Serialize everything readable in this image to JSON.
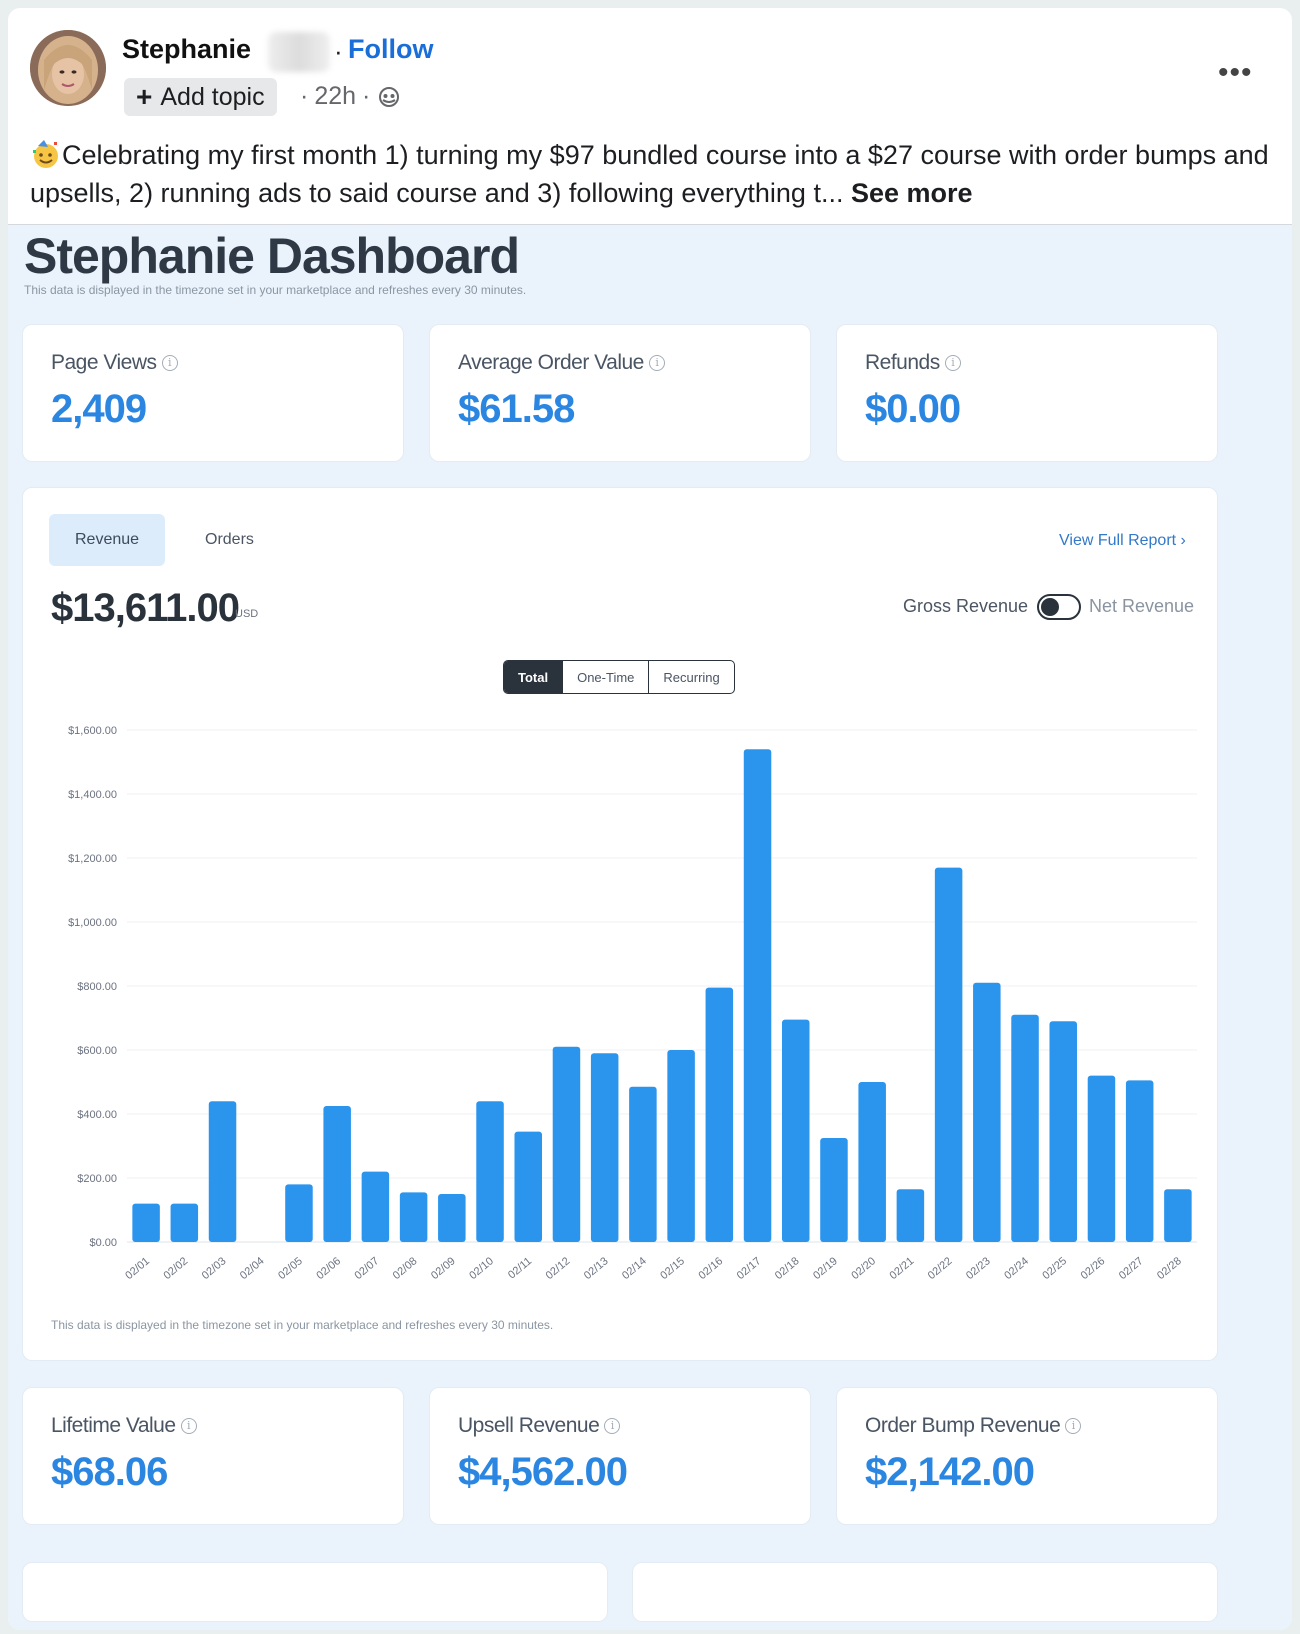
{
  "post": {
    "author": "Stephanie",
    "follow_label": "Follow",
    "add_topic_label": "Add topic",
    "time": "22h",
    "text": "Celebrating my first month 1) turning my $97 bundled course into a $27 course with order bumps and upsells, 2) running ads to said course and 3) following everything t...",
    "see_more": "See more",
    "more_icon": "more-options-icon",
    "globe_icon": "globe-icon"
  },
  "dashboard": {
    "title": "Stephanie Dashboard",
    "subtitle": "This data is displayed in the timezone set in your marketplace and refreshes every 30 minutes.",
    "top_stats": [
      {
        "label": "Page Views",
        "value": "2,409"
      },
      {
        "label": "Average Order Value",
        "value": "$61.58"
      },
      {
        "label": "Refunds",
        "value": "$0.00"
      }
    ],
    "bottom_stats": [
      {
        "label": "Lifetime Value",
        "value": "$68.06"
      },
      {
        "label": "Upsell Revenue",
        "value": "$4,562.00"
      },
      {
        "label": "Order Bump Revenue",
        "value": "$2,142.00"
      }
    ],
    "tabs": [
      "Revenue",
      "Orders"
    ],
    "full_report": "View Full Report ›",
    "total": "$13,611.00",
    "currency": "USD",
    "gross_label": "Gross Revenue",
    "net_label": "Net Revenue",
    "segments": [
      "Total",
      "One-Time",
      "Recurring"
    ],
    "chart_note": "This data is displayed in the timezone set in your marketplace and refreshes every 30 minutes."
  },
  "chart_data": {
    "type": "bar",
    "title": "",
    "xlabel": "",
    "ylabel": "",
    "ylim": [
      0,
      1600
    ],
    "y_ticks": [
      "$0.00",
      "$200.00",
      "$400.00",
      "$600.00",
      "$800.00",
      "$1,000.00",
      "$1,200.00",
      "$1,400.00",
      "$1,600.00"
    ],
    "categories": [
      "02/01",
      "02/02",
      "02/03",
      "02/04",
      "02/05",
      "02/06",
      "02/07",
      "02/08",
      "02/09",
      "02/10",
      "02/11",
      "02/12",
      "02/13",
      "02/14",
      "02/15",
      "02/16",
      "02/17",
      "02/18",
      "02/19",
      "02/20",
      "02/21",
      "02/22",
      "02/23",
      "02/24",
      "02/25",
      "02/26",
      "02/27",
      "02/28"
    ],
    "values": [
      120,
      120,
      440,
      0,
      180,
      425,
      220,
      155,
      150,
      440,
      345,
      610,
      590,
      485,
      600,
      795,
      1540,
      695,
      325,
      500,
      165,
      1170,
      810,
      710,
      690,
      520,
      505,
      165
    ],
    "bar_color": "#2b95ee",
    "grid": true
  }
}
